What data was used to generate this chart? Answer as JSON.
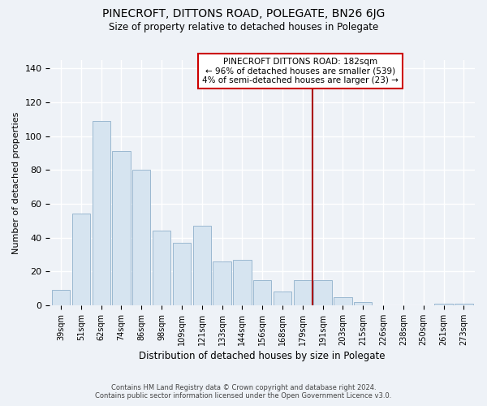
{
  "title": "PINECROFT, DITTONS ROAD, POLEGATE, BN26 6JG",
  "subtitle": "Size of property relative to detached houses in Polegate",
  "xlabel": "Distribution of detached houses by size in Polegate",
  "ylabel": "Number of detached properties",
  "bar_labels": [
    "39sqm",
    "51sqm",
    "62sqm",
    "74sqm",
    "86sqm",
    "98sqm",
    "109sqm",
    "121sqm",
    "133sqm",
    "144sqm",
    "156sqm",
    "168sqm",
    "179sqm",
    "191sqm",
    "203sqm",
    "215sqm",
    "226sqm",
    "238sqm",
    "250sqm",
    "261sqm",
    "273sqm"
  ],
  "bar_values": [
    9,
    54,
    109,
    91,
    80,
    44,
    37,
    47,
    26,
    27,
    15,
    8,
    15,
    15,
    5,
    2,
    0,
    0,
    0,
    1,
    1
  ],
  "bar_color": "#d6e4f0",
  "bar_edge_color": "#9ab8d0",
  "vline_x_index": 12,
  "vline_color": "#aa0000",
  "ylim": [
    0,
    145
  ],
  "yticks": [
    0,
    20,
    40,
    60,
    80,
    100,
    120,
    140
  ],
  "annotation_title": "PINECROFT DITTONS ROAD: 182sqm",
  "annotation_line1": "← 96% of detached houses are smaller (539)",
  "annotation_line2": "4% of semi-detached houses are larger (23) →",
  "annotation_box_color": "#ffffff",
  "annotation_box_edge": "#cc0000",
  "footer_line1": "Contains HM Land Registry data © Crown copyright and database right 2024.",
  "footer_line2": "Contains public sector information licensed under the Open Government Licence v3.0.",
  "background_color": "#eef2f7",
  "grid_color": "#ffffff"
}
